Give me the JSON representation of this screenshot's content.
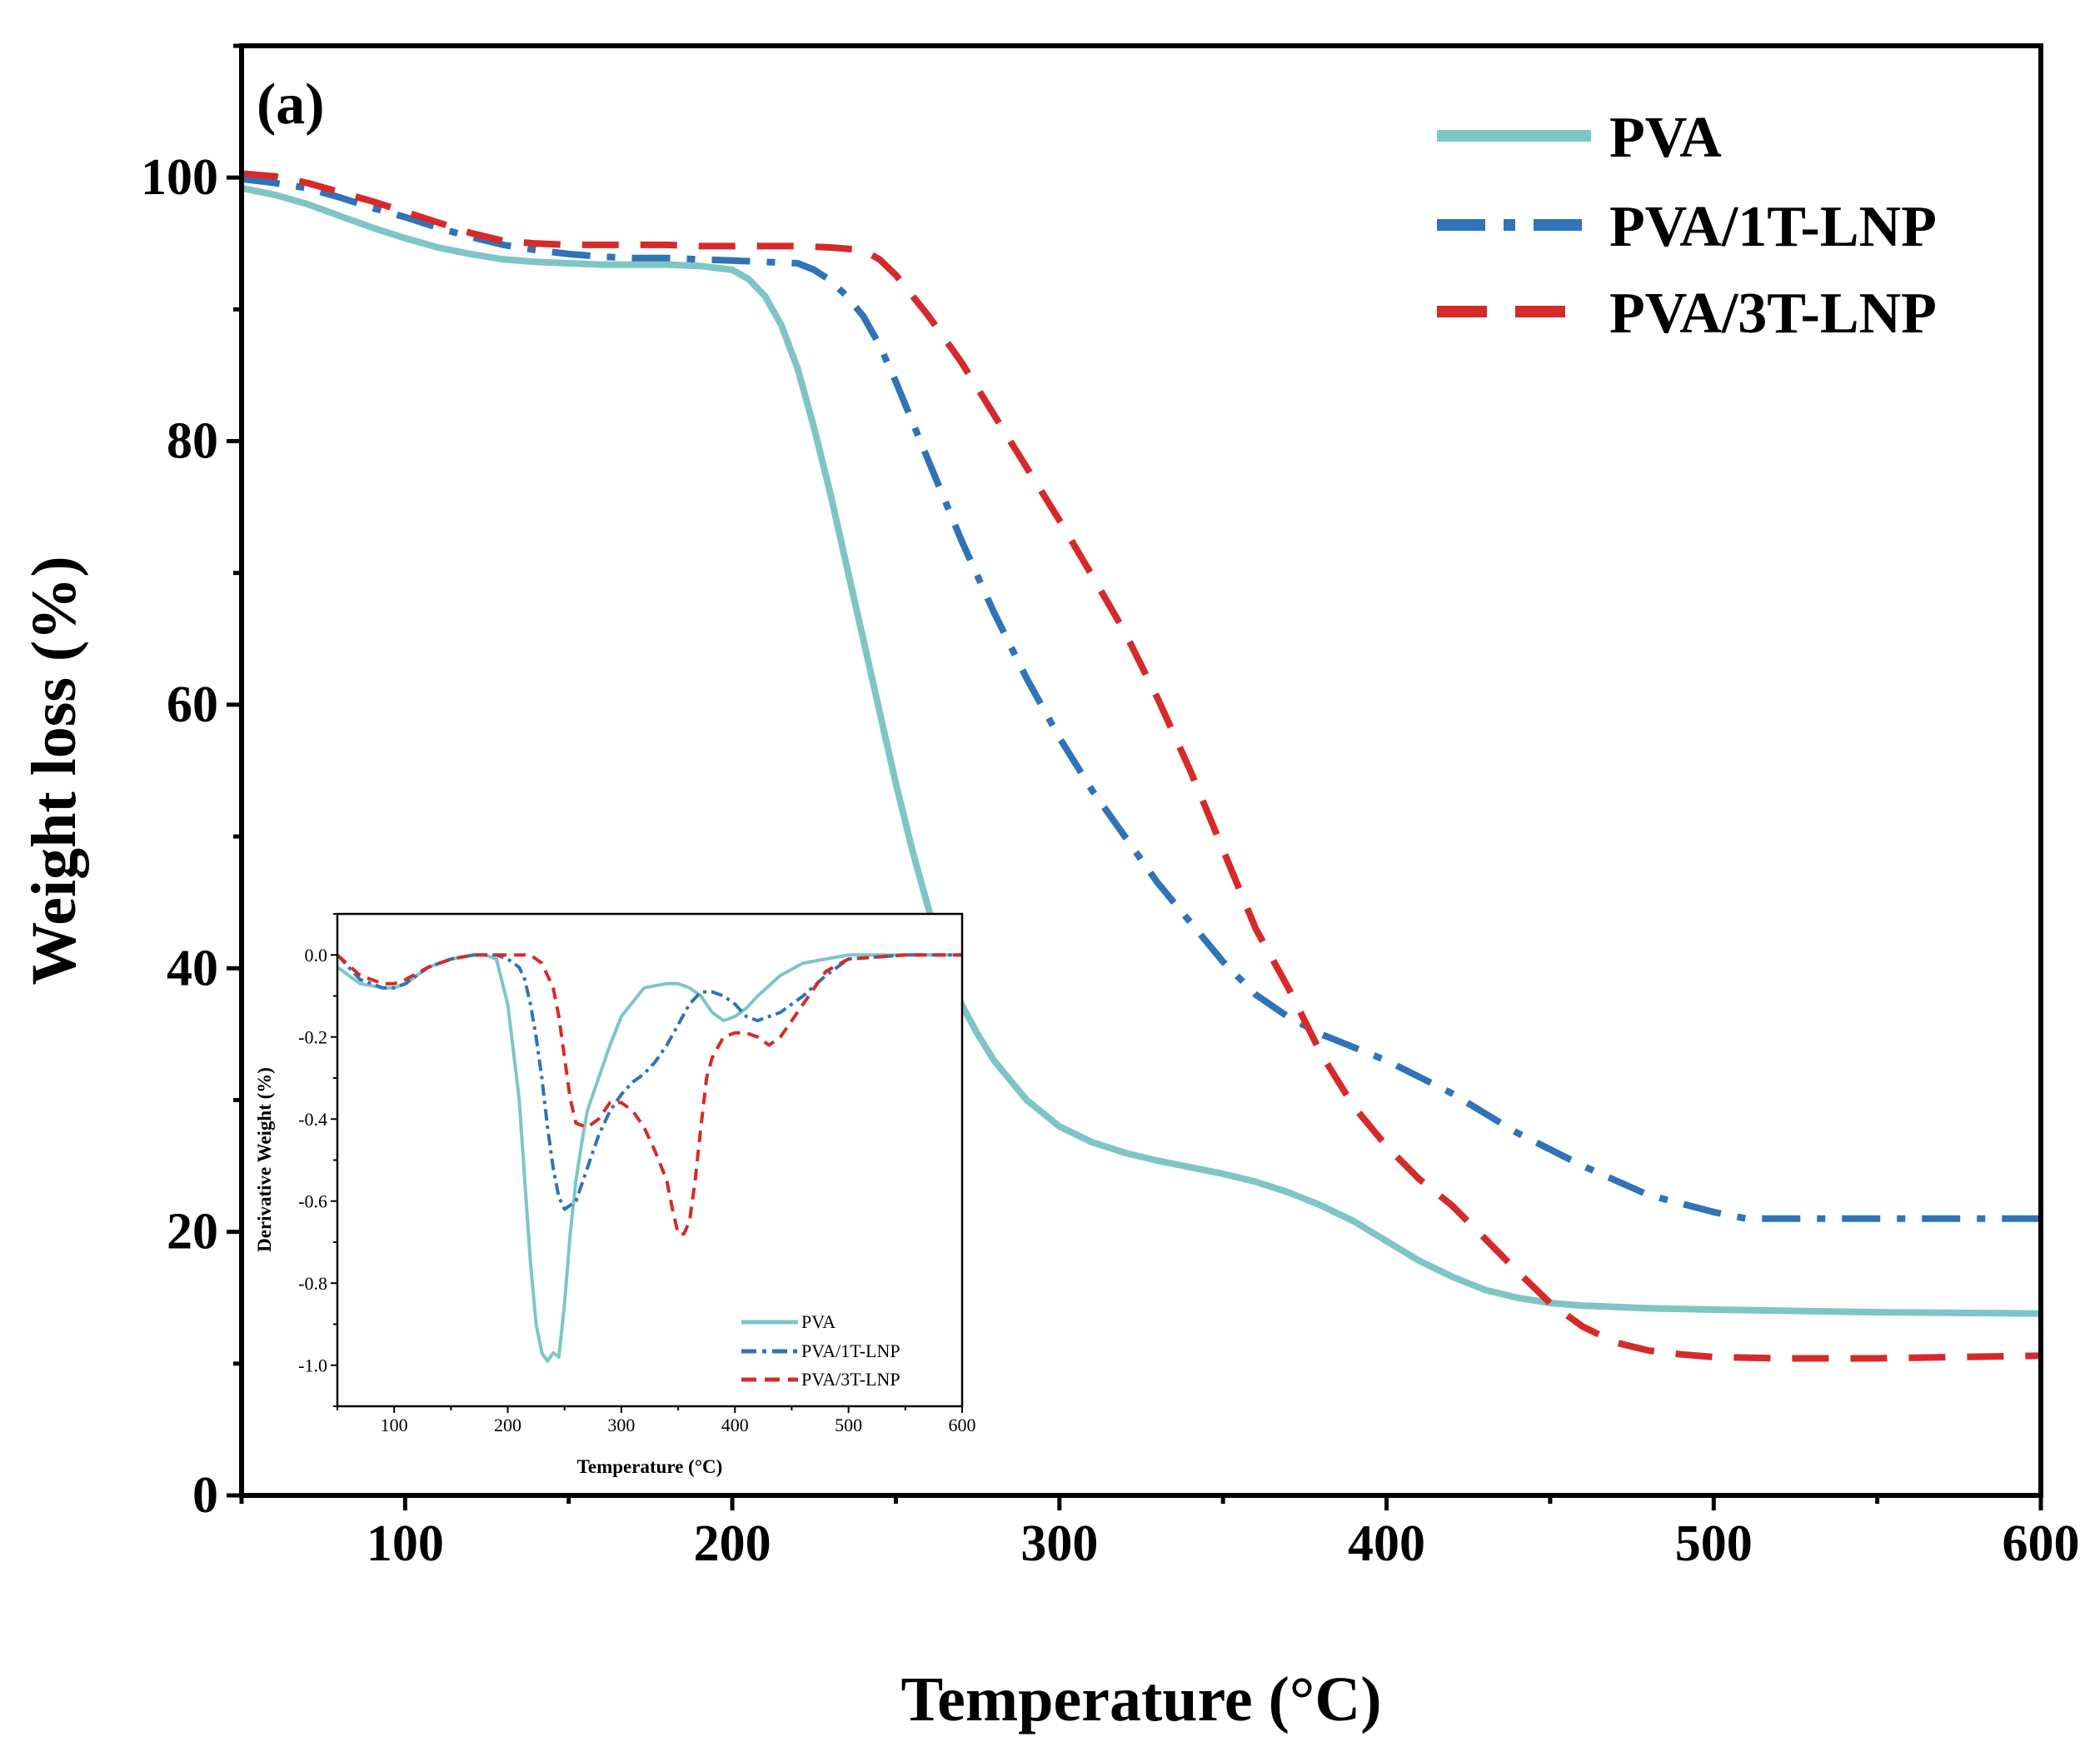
{
  "chart_data": [
    {
      "type": "line",
      "panel_label": "(a)",
      "title": "",
      "xlabel": "Temperature (°C)",
      "ylabel": "Weight loss (%)",
      "xlim": [
        50,
        600
      ],
      "ylim": [
        0,
        110
      ],
      "xticks": [
        100,
        200,
        300,
        400,
        500,
        600
      ],
      "yticks": [
        0,
        20,
        40,
        60,
        80,
        100
      ],
      "legend_position": "top-right",
      "series": [
        {
          "name": "PVA",
          "color": "#7fc5c5",
          "style": "solid",
          "x": [
            50,
            60,
            70,
            80,
            90,
            100,
            110,
            120,
            130,
            140,
            150,
            160,
            170,
            180,
            190,
            200,
            205,
            210,
            215,
            220,
            225,
            230,
            235,
            240,
            245,
            250,
            255,
            260,
            265,
            270,
            275,
            280,
            290,
            300,
            310,
            320,
            330,
            340,
            350,
            360,
            370,
            380,
            390,
            400,
            410,
            420,
            430,
            440,
            450,
            460,
            470,
            480,
            500,
            550,
            600
          ],
          "y": [
            99.2,
            98.7,
            98.0,
            97.1,
            96.2,
            95.4,
            94.7,
            94.2,
            93.8,
            93.6,
            93.5,
            93.4,
            93.4,
            93.4,
            93.3,
            93.0,
            92.3,
            91.0,
            88.8,
            85.5,
            81.0,
            76.0,
            70.5,
            65.0,
            59.5,
            54.0,
            49.0,
            44.5,
            40.5,
            37.3,
            35.0,
            33.0,
            30.0,
            28.0,
            26.8,
            26.0,
            25.4,
            24.9,
            24.4,
            23.8,
            23.0,
            22.0,
            20.8,
            19.3,
            17.8,
            16.6,
            15.6,
            15.0,
            14.6,
            14.4,
            14.3,
            14.2,
            14.1,
            13.9,
            13.8
          ]
        },
        {
          "name": "PVA/1T-LNP",
          "color": "#2f73b8",
          "style": "dashdot",
          "x": [
            50,
            60,
            70,
            80,
            90,
            100,
            110,
            120,
            130,
            140,
            150,
            160,
            170,
            180,
            190,
            200,
            210,
            220,
            225,
            230,
            235,
            240,
            245,
            250,
            260,
            270,
            280,
            290,
            300,
            310,
            320,
            330,
            340,
            350,
            360,
            370,
            380,
            390,
            400,
            420,
            440,
            460,
            480,
            500,
            510,
            550,
            600
          ],
          "y": [
            99.9,
            99.6,
            99.2,
            98.5,
            97.7,
            97.0,
            96.2,
            95.5,
            94.9,
            94.5,
            94.2,
            94.0,
            93.9,
            93.9,
            93.8,
            93.7,
            93.6,
            93.5,
            93.0,
            92.2,
            91.0,
            89.5,
            87.3,
            84.5,
            78.5,
            72.5,
            67.0,
            62.0,
            57.5,
            53.5,
            50.0,
            46.5,
            43.5,
            40.5,
            38.0,
            36.3,
            35.0,
            34.0,
            33.0,
            30.5,
            27.5,
            25.0,
            22.8,
            21.5,
            21.0,
            21.0,
            21.0
          ]
        },
        {
          "name": "PVA/3T-LNP",
          "color": "#d62a2a",
          "style": "dashed",
          "x": [
            50,
            60,
            70,
            80,
            90,
            100,
            110,
            120,
            130,
            140,
            150,
            160,
            170,
            180,
            190,
            200,
            210,
            220,
            230,
            240,
            245,
            250,
            260,
            270,
            280,
            290,
            300,
            310,
            320,
            330,
            340,
            350,
            360,
            370,
            375,
            380,
            390,
            400,
            410,
            420,
            430,
            440,
            450,
            460,
            470,
            480,
            490,
            500,
            520,
            550,
            600
          ],
          "y": [
            100.3,
            100.1,
            99.6,
            98.9,
            98.2,
            97.4,
            96.6,
            95.8,
            95.2,
            95.0,
            94.9,
            94.9,
            94.9,
            94.9,
            94.8,
            94.8,
            94.8,
            94.8,
            94.7,
            94.5,
            93.8,
            92.6,
            89.5,
            86.0,
            82.0,
            78.0,
            74.0,
            69.8,
            65.5,
            60.5,
            55.0,
            49.0,
            43.0,
            38.5,
            36.0,
            33.5,
            29.5,
            26.5,
            24.0,
            22.0,
            19.5,
            17.0,
            14.6,
            12.8,
            11.6,
            11.0,
            10.7,
            10.5,
            10.4,
            10.4,
            10.6
          ]
        }
      ]
    },
    {
      "type": "line",
      "role": "inset",
      "title": "",
      "xlabel": "Temperature (°C)",
      "ylabel": "Derivative Weight (%)",
      "xlim": [
        50,
        600
      ],
      "ylim": [
        -1.1,
        0.1
      ],
      "xticks": [
        100,
        200,
        300,
        400,
        500,
        600
      ],
      "yticks": [
        0.0,
        -0.2,
        -0.4,
        -0.6,
        -0.8,
        -1.0
      ],
      "ytick_labels": [
        "0.0",
        "-0.2",
        "-0.4",
        "-0.6",
        "-0.8",
        "-1.0"
      ],
      "legend_position": "bottom-right",
      "series": [
        {
          "name": "PVA",
          "color": "#7fc5c5",
          "style": "solid",
          "x": [
            50,
            70,
            90,
            100,
            110,
            130,
            150,
            170,
            180,
            190,
            200,
            210,
            215,
            220,
            225,
            230,
            235,
            240,
            245,
            250,
            255,
            260,
            265,
            270,
            280,
            290,
            300,
            320,
            340,
            350,
            360,
            370,
            380,
            390,
            400,
            410,
            420,
            440,
            460,
            480,
            500,
            550,
            600
          ],
          "y": [
            -0.03,
            -0.07,
            -0.08,
            -0.08,
            -0.07,
            -0.03,
            -0.01,
            0.0,
            0.0,
            -0.01,
            -0.12,
            -0.35,
            -0.55,
            -0.75,
            -0.9,
            -0.97,
            -0.99,
            -0.97,
            -0.98,
            -0.85,
            -0.68,
            -0.55,
            -0.46,
            -0.38,
            -0.3,
            -0.22,
            -0.15,
            -0.08,
            -0.07,
            -0.07,
            -0.08,
            -0.1,
            -0.14,
            -0.16,
            -0.15,
            -0.13,
            -0.1,
            -0.05,
            -0.02,
            -0.01,
            0.0,
            0.0,
            0.0
          ]
        },
        {
          "name": "PVA/1T-LNP",
          "color": "#2f73b8",
          "style": "dashdot",
          "x": [
            50,
            70,
            90,
            100,
            110,
            130,
            150,
            170,
            190,
            200,
            210,
            215,
            220,
            225,
            230,
            235,
            240,
            245,
            250,
            260,
            270,
            280,
            290,
            300,
            310,
            320,
            330,
            340,
            350,
            360,
            370,
            380,
            390,
            400,
            410,
            420,
            440,
            460,
            480,
            500,
            550,
            600
          ],
          "y": [
            0.0,
            -0.06,
            -0.08,
            -0.08,
            -0.07,
            -0.03,
            -0.01,
            0.0,
            0.0,
            -0.01,
            -0.03,
            -0.06,
            -0.12,
            -0.2,
            -0.3,
            -0.42,
            -0.52,
            -0.59,
            -0.62,
            -0.6,
            -0.52,
            -0.44,
            -0.38,
            -0.34,
            -0.31,
            -0.29,
            -0.26,
            -0.22,
            -0.17,
            -0.12,
            -0.09,
            -0.09,
            -0.1,
            -0.12,
            -0.15,
            -0.16,
            -0.14,
            -0.1,
            -0.05,
            -0.01,
            0.0,
            0.0
          ]
        },
        {
          "name": "PVA/3T-LNP",
          "color": "#d62a2a",
          "style": "dashed",
          "x": [
            50,
            70,
            90,
            100,
            110,
            130,
            150,
            170,
            190,
            200,
            210,
            220,
            230,
            240,
            245,
            250,
            255,
            260,
            270,
            280,
            290,
            300,
            310,
            320,
            330,
            340,
            345,
            350,
            355,
            360,
            365,
            370,
            375,
            380,
            390,
            400,
            410,
            420,
            430,
            440,
            450,
            460,
            470,
            480,
            500,
            550,
            600
          ],
          "y": [
            0.0,
            -0.05,
            -0.07,
            -0.07,
            -0.06,
            -0.03,
            -0.01,
            0.0,
            0.0,
            0.0,
            0.0,
            0.0,
            -0.02,
            -0.08,
            -0.15,
            -0.25,
            -0.35,
            -0.41,
            -0.42,
            -0.4,
            -0.36,
            -0.36,
            -0.38,
            -0.42,
            -0.48,
            -0.55,
            -0.62,
            -0.68,
            -0.68,
            -0.65,
            -0.55,
            -0.42,
            -0.3,
            -0.25,
            -0.2,
            -0.19,
            -0.19,
            -0.2,
            -0.22,
            -0.2,
            -0.16,
            -0.12,
            -0.08,
            -0.04,
            -0.01,
            0.0,
            0.0
          ]
        }
      ]
    }
  ]
}
